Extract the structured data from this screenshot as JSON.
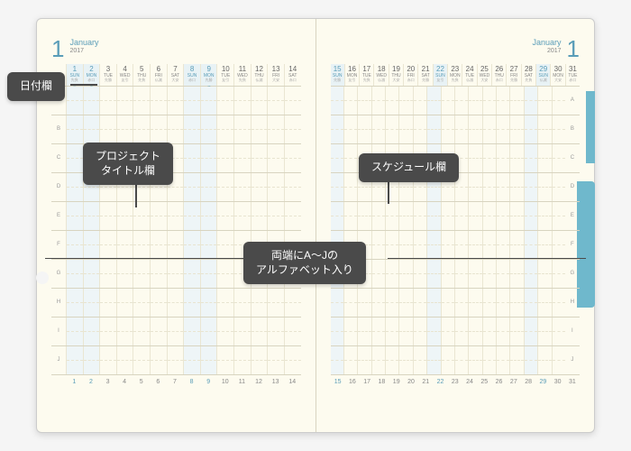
{
  "month_num": "1",
  "month_name": "January",
  "year": "2017",
  "row_letters": [
    "A",
    "B",
    "C",
    "D",
    "E",
    "F",
    "G",
    "H",
    "I",
    "J"
  ],
  "days_left": [
    {
      "n": "1",
      "dow": "SUN",
      "sm": "先負",
      "cls": "sun hol",
      "holiday": "元日"
    },
    {
      "n": "2",
      "dow": "MON",
      "sm": "赤口",
      "cls": "hol",
      "holiday": "振替休日"
    },
    {
      "n": "3",
      "dow": "TUE",
      "sm": "先勝",
      "cls": ""
    },
    {
      "n": "4",
      "dow": "WED",
      "sm": "友引",
      "cls": ""
    },
    {
      "n": "5",
      "dow": "THU",
      "sm": "先負",
      "cls": ""
    },
    {
      "n": "6",
      "dow": "FRI",
      "sm": "仏滅",
      "cls": ""
    },
    {
      "n": "7",
      "dow": "SAT",
      "sm": "大安",
      "cls": ""
    },
    {
      "n": "8",
      "dow": "SUN",
      "sm": "赤口",
      "cls": "sun hol"
    },
    {
      "n": "9",
      "dow": "MON",
      "sm": "先勝",
      "cls": "hol",
      "holiday": "成人の日"
    },
    {
      "n": "10",
      "dow": "TUE",
      "sm": "友引",
      "cls": ""
    },
    {
      "n": "11",
      "dow": "WED",
      "sm": "先負",
      "cls": ""
    },
    {
      "n": "12",
      "dow": "THU",
      "sm": "仏滅",
      "cls": ""
    },
    {
      "n": "13",
      "dow": "FRI",
      "sm": "大安",
      "cls": ""
    },
    {
      "n": "14",
      "dow": "SAT",
      "sm": "赤口",
      "cls": ""
    }
  ],
  "days_right": [
    {
      "n": "15",
      "dow": "SUN",
      "sm": "先勝",
      "cls": "sun hol"
    },
    {
      "n": "16",
      "dow": "MON",
      "sm": "友引",
      "cls": ""
    },
    {
      "n": "17",
      "dow": "TUE",
      "sm": "先負",
      "cls": ""
    },
    {
      "n": "18",
      "dow": "WED",
      "sm": "仏滅",
      "cls": ""
    },
    {
      "n": "19",
      "dow": "THU",
      "sm": "大安",
      "cls": ""
    },
    {
      "n": "20",
      "dow": "FRI",
      "sm": "赤口",
      "cls": ""
    },
    {
      "n": "21",
      "dow": "SAT",
      "sm": "先勝",
      "cls": ""
    },
    {
      "n": "22",
      "dow": "SUN",
      "sm": "友引",
      "cls": "sun hol"
    },
    {
      "n": "23",
      "dow": "MON",
      "sm": "先負",
      "cls": ""
    },
    {
      "n": "24",
      "dow": "TUE",
      "sm": "仏滅",
      "cls": ""
    },
    {
      "n": "25",
      "dow": "WED",
      "sm": "大安",
      "cls": ""
    },
    {
      "n": "26",
      "dow": "THU",
      "sm": "赤口",
      "cls": ""
    },
    {
      "n": "27",
      "dow": "FRI",
      "sm": "先勝",
      "cls": ""
    },
    {
      "n": "28",
      "dow": "SAT",
      "sm": "先負",
      "cls": ""
    },
    {
      "n": "29",
      "dow": "SUN",
      "sm": "仏滅",
      "cls": "sun hol"
    },
    {
      "n": "30",
      "dow": "MON",
      "sm": "大安",
      "cls": ""
    },
    {
      "n": "31",
      "dow": "TUE",
      "sm": "赤口",
      "cls": ""
    }
  ],
  "callouts": {
    "date_col": "日付欄",
    "project_title": "プロジェクト\nタイトル欄",
    "schedule": "スケジュール欄",
    "alphabet": "両端にA〜Jの\nアルファベット入り"
  },
  "colors": {
    "accent": "#5a9db8",
    "callout_bg": "#4a4a4a",
    "page_bg": "#fdfbef",
    "holiday_bg": "#e8f2f5"
  }
}
